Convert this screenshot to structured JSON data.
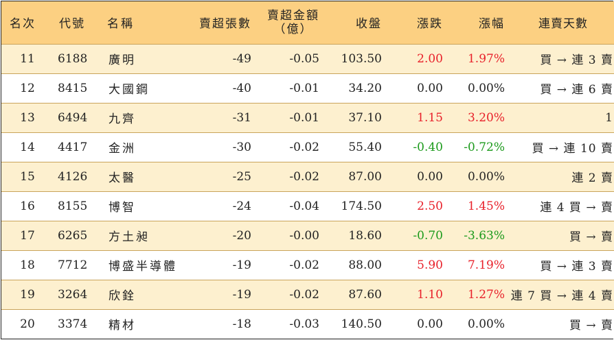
{
  "headers": {
    "rank": "名次",
    "code": "代號",
    "name": "名稱",
    "net_sell_lots": "賣超張數",
    "net_sell_amount_line1": "賣超金額",
    "net_sell_amount_line2": "（億）",
    "close": "收盤",
    "change": "漲跌",
    "change_pct": "漲幅",
    "consecutive_days": "連賣天數"
  },
  "rows": [
    {
      "rank": "11",
      "code": "6188",
      "name": "廣明",
      "lots": "-49",
      "amount": "-0.05",
      "close": "103.50",
      "change": "2.00",
      "pct": "1.97%",
      "dir": "up",
      "days": "買 → 連 3 賣"
    },
    {
      "rank": "12",
      "code": "8415",
      "name": "大國鋼",
      "lots": "-40",
      "amount": "-0.01",
      "close": "34.20",
      "change": "0.00",
      "pct": "0.00%",
      "dir": "flat",
      "days": "買 → 連 6 賣"
    },
    {
      "rank": "13",
      "code": "6494",
      "name": "九齊",
      "lots": "-31",
      "amount": "-0.01",
      "close": "37.10",
      "change": "1.15",
      "pct": "3.20%",
      "dir": "up",
      "days": "1"
    },
    {
      "rank": "14",
      "code": "4417",
      "name": "金洲",
      "lots": "-30",
      "amount": "-0.02",
      "close": "55.40",
      "change": "-0.40",
      "pct": "-0.72%",
      "dir": "down",
      "days": "買 → 連 10 賣"
    },
    {
      "rank": "15",
      "code": "4126",
      "name": "太醫",
      "lots": "-25",
      "amount": "-0.02",
      "close": "87.00",
      "change": "0.00",
      "pct": "0.00%",
      "dir": "flat",
      "days": "連 2 賣"
    },
    {
      "rank": "16",
      "code": "8155",
      "name": "博智",
      "lots": "-24",
      "amount": "-0.04",
      "close": "174.50",
      "change": "2.50",
      "pct": "1.45%",
      "dir": "up",
      "days": "連 4 買 → 賣"
    },
    {
      "rank": "17",
      "code": "6265",
      "name": "方土昶",
      "lots": "-20",
      "amount": "-0.00",
      "close": "18.60",
      "change": "-0.70",
      "pct": "-3.63%",
      "dir": "down",
      "days": "買 → 賣"
    },
    {
      "rank": "18",
      "code": "7712",
      "name": "博盛半導體",
      "lots": "-19",
      "amount": "-0.02",
      "close": "88.00",
      "change": "5.90",
      "pct": "7.19%",
      "dir": "up",
      "days": "買 → 連 3 賣"
    },
    {
      "rank": "19",
      "code": "3264",
      "name": "欣銓",
      "lots": "-19",
      "amount": "-0.02",
      "close": "87.60",
      "change": "1.10",
      "pct": "1.27%",
      "dir": "up",
      "days": "連 7 買 → 連 4 賣"
    },
    {
      "rank": "20",
      "code": "3374",
      "name": "精材",
      "lots": "-18",
      "amount": "-0.03",
      "close": "140.50",
      "change": "0.00",
      "pct": "0.00%",
      "dir": "flat",
      "days": "買 → 賣"
    }
  ],
  "colors": {
    "header_bg": "#fcd082",
    "alt_row_bg": "#fdf0cf",
    "up": "#e8202a",
    "down": "#1b9a1b"
  }
}
